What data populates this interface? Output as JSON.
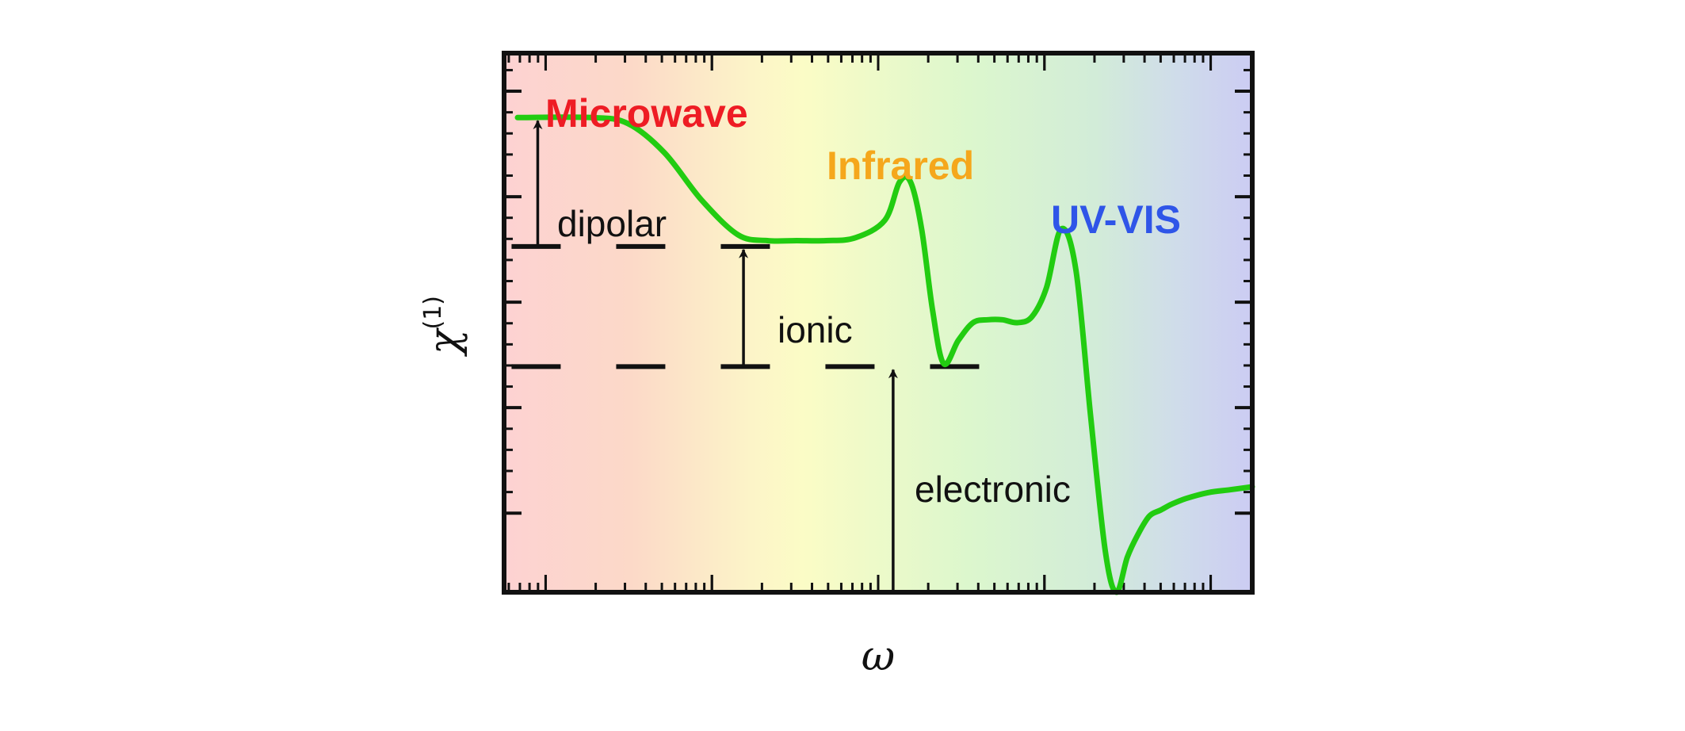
{
  "chart_data": {
    "type": "line",
    "title": "",
    "xlabel": "ω",
    "ylabel": "χ",
    "ylabel_superscript": "(1)",
    "xscale": "log",
    "grid": false,
    "x": [
      0.0,
      0.1,
      0.15,
      0.2,
      0.25,
      0.3,
      0.34,
      0.38,
      0.42,
      0.46,
      0.5,
      0.52,
      0.535,
      0.55,
      0.565,
      0.58,
      0.6,
      0.62,
      0.64,
      0.66,
      0.68,
      0.7,
      0.72,
      0.74,
      0.76,
      0.78,
      0.8,
      0.815,
      0.83,
      0.845,
      0.86,
      0.875,
      0.89,
      0.91,
      0.94,
      0.97,
      1.0
    ],
    "series": [
      {
        "color": "#22cc11",
        "values": [
          0.81,
          0.81,
          0.8,
          0.75,
          0.67,
          0.61,
          0.6,
          0.6,
          0.6,
          0.605,
          0.635,
          0.7,
          0.7,
          0.62,
          0.48,
          0.39,
          0.43,
          0.46,
          0.465,
          0.465,
          0.46,
          0.47,
          0.52,
          0.62,
          0.55,
          0.3,
          0.07,
          0.0,
          0.06,
          0.1,
          0.13,
          0.14,
          0.15,
          0.16,
          0.17,
          0.175,
          0.18
        ]
      }
    ],
    "regions": [
      {
        "name": "Microwave",
        "color": "#ee1c24"
      },
      {
        "name": "Infrared",
        "color": "#f5a71c"
      },
      {
        "name": "UV-VIS",
        "color": "#2f55e8"
      }
    ],
    "levels": [
      {
        "name": "dipolar",
        "value": 0.81,
        "from": 0.59
      },
      {
        "name": "ionic",
        "value": 0.59,
        "from": 0.385
      },
      {
        "name": "electronic",
        "value": 0.385,
        "from": 0.0
      }
    ],
    "annotations": [
      "dipolar",
      "ionic",
      "electronic"
    ]
  }
}
